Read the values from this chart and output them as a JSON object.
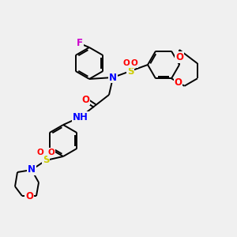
{
  "bg_color": "#f0f0f0",
  "bond_color": "#000000",
  "atom_colors": {
    "F": "#cc00cc",
    "N": "#0000ff",
    "O": "#ff0000",
    "S": "#cccc00",
    "C": "#000000",
    "H": "#408080"
  },
  "bond_lw": 1.4,
  "ring_r": 22,
  "font_size": 8.5
}
